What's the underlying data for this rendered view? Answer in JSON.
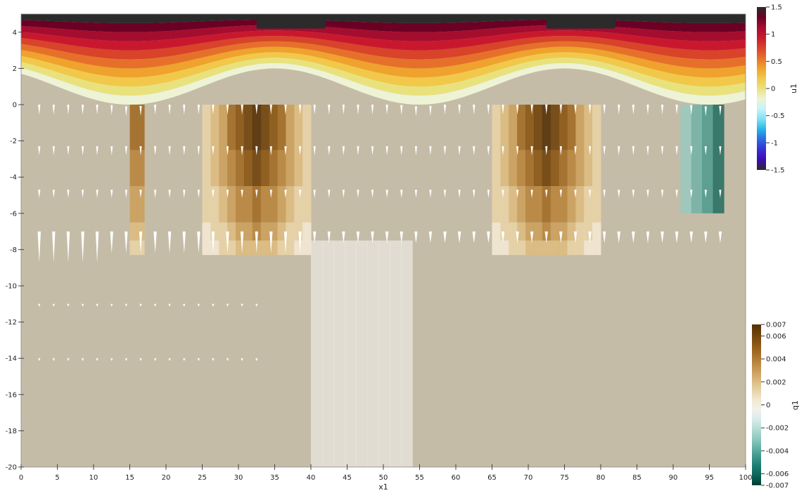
{
  "chart_data": {
    "type": "heatmap",
    "xlabel": "x1",
    "x_ticks": [
      "0",
      "5",
      "10",
      "15",
      "20",
      "25",
      "30",
      "35",
      "40",
      "45",
      "50",
      "55",
      "60",
      "65",
      "70",
      "75",
      "80",
      "85",
      "90",
      "95",
      "100"
    ],
    "y_ticks": [
      "4",
      "2",
      "0",
      "-2",
      "-4",
      "-6",
      "-8",
      "-10",
      "-12",
      "-14",
      "-16",
      "-18",
      "-20"
    ],
    "xlim": [
      0,
      100
    ],
    "ylim": [
      -20,
      5
    ],
    "grid": false,
    "surface": {
      "description_values": "free surface crests near x1=35 and x1=75 at height 2, troughs at height 0",
      "crests_x": [
        35,
        75
      ],
      "troughs_x": [
        15,
        55,
        95
      ],
      "crest_height": 2,
      "trough_height": 0,
      "upper_boundary": 5
    },
    "water_field": {
      "name": "q1",
      "positive_columns_x": [
        [
          15,
          17
        ],
        [
          25,
          40
        ],
        [
          65,
          80
        ]
      ],
      "negative_columns_x": [
        [
          91,
          97
        ],
        [
          40,
          54
        ]
      ],
      "peak_value": 0.007,
      "min_value": -0.007
    },
    "air_field": {
      "name": "u1",
      "top_value": 1.5,
      "interface_value": 0
    },
    "colorbar_u1": {
      "title": "u1",
      "range": [
        -1.5,
        1.5
      ],
      "tick_labels": [
        "1.5",
        "1",
        "0.5",
        "0",
        "-0.5",
        "-1",
        "-1.5"
      ],
      "colors": [
        "#2b2b2b",
        "#6b0024",
        "#a50d2f",
        "#c9182e",
        "#d8432a",
        "#e6702a",
        "#efa22d",
        "#f2c84a",
        "#e9e27c",
        "#eef3d6",
        "#c7f3f7",
        "#7fe1f3",
        "#27b5e8",
        "#2a6ce0",
        "#3a2dd4",
        "#3d0cb3",
        "#2b2b2b"
      ]
    },
    "colorbar_q1": {
      "title": "q1",
      "range": [
        -0.007,
        0.007
      ],
      "tick_labels": [
        "0.007",
        "0.006",
        "0.004",
        "0.002",
        "0",
        "-0.002",
        "-0.004",
        "-0.006",
        "-0.007"
      ],
      "colors": [
        "#543005",
        "#6f420b",
        "#8a5513",
        "#a26b25",
        "#b8853d",
        "#cba05c",
        "#dbbb80",
        "#e8d3a6",
        "#f2e8d3",
        "#f3f1ec",
        "#d9ece9",
        "#b7ddd6",
        "#91cbc1",
        "#66b2a7",
        "#3c968b",
        "#1b7b70",
        "#0a6257",
        "#003c30"
      ]
    },
    "vector_glyphs": {
      "name": "velocity arrows",
      "color": "#ffffff",
      "rows_y": [
        0,
        -2.3,
        -4.7,
        -7,
        -11,
        -14
      ]
    }
  }
}
